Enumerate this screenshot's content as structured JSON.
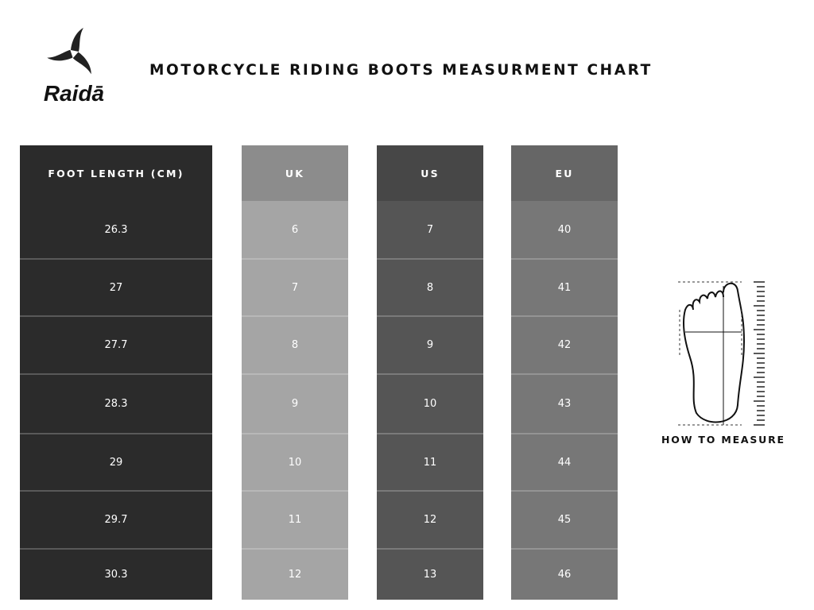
{
  "brand": {
    "name": "Raidā"
  },
  "title": "MOTORCYCLE RIDING BOOTS MEASURMENT CHART",
  "table": {
    "columns": [
      {
        "header": "FOOT LENGTH (CM)",
        "header_color": "#2b2b2b",
        "body_color": "#2b2b2b",
        "values": [
          "26.3",
          "27",
          "27.7",
          "28.3",
          "29",
          "29.7",
          "30.3"
        ]
      },
      {
        "header": "UK",
        "header_color": "#8c8c8c",
        "body_color": "#a5a5a5",
        "values": [
          "6",
          "7",
          "8",
          "9",
          "10",
          "11",
          "12"
        ]
      },
      {
        "header": "US",
        "header_color": "#474747",
        "body_color": "#555555",
        "values": [
          "7",
          "8",
          "9",
          "10",
          "11",
          "12",
          "13"
        ]
      },
      {
        "header": "EU",
        "header_color": "#666666",
        "body_color": "#777777",
        "values": [
          "40",
          "41",
          "42",
          "43",
          "44",
          "45",
          "46"
        ]
      }
    ]
  },
  "how_to_measure": {
    "label": "HOW TO MEASURE",
    "icon": "foot-measure-icon"
  }
}
